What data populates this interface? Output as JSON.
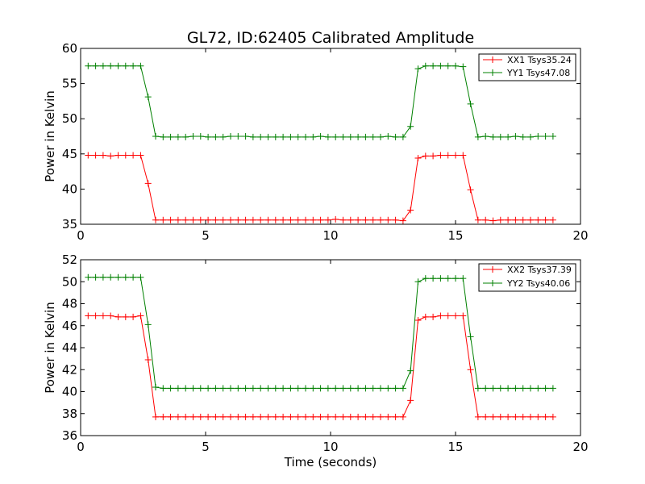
{
  "chart_data": [
    {
      "type": "line",
      "title": "GL72, ID:62405 Calibrated Amplitude",
      "xlabel": "",
      "ylabel": "Power in Kelvin",
      "xlim": [
        0,
        20
      ],
      "ylim": [
        35,
        60
      ],
      "x_ticks": [
        "0",
        "5",
        "10",
        "15",
        "20"
      ],
      "y_ticks": [
        "35",
        "40",
        "45",
        "50",
        "55",
        "60"
      ],
      "grid": false,
      "legend_position": "top-right",
      "x": [
        0.3,
        0.6,
        0.9,
        1.2,
        1.5,
        1.8,
        2.1,
        2.4,
        2.7,
        3.0,
        3.3,
        3.6,
        3.9,
        4.2,
        4.5,
        4.8,
        5.1,
        5.4,
        5.7,
        6.0,
        6.3,
        6.6,
        6.9,
        7.2,
        7.5,
        7.8,
        8.1,
        8.4,
        8.7,
        9.0,
        9.3,
        9.6,
        9.9,
        10.2,
        10.5,
        10.8,
        11.1,
        11.4,
        11.7,
        12.0,
        12.3,
        12.6,
        12.9,
        13.2,
        13.5,
        13.8,
        14.1,
        14.4,
        14.7,
        15.0,
        15.3,
        15.6,
        15.9,
        16.2,
        16.5,
        16.8,
        17.1,
        17.4,
        17.7,
        18.0,
        18.3,
        18.6,
        18.9
      ],
      "series": [
        {
          "name": "XX1 Tsys35.24",
          "color": "#ff0000",
          "values": [
            44.8,
            44.8,
            44.8,
            44.7,
            44.8,
            44.8,
            44.8,
            44.8,
            40.8,
            35.6,
            35.6,
            35.6,
            35.6,
            35.6,
            35.6,
            35.6,
            35.6,
            35.6,
            35.6,
            35.6,
            35.6,
            35.6,
            35.6,
            35.6,
            35.6,
            35.6,
            35.6,
            35.6,
            35.6,
            35.6,
            35.6,
            35.6,
            35.6,
            35.7,
            35.6,
            35.6,
            35.6,
            35.6,
            35.6,
            35.6,
            35.6,
            35.6,
            35.5,
            37.0,
            44.4,
            44.7,
            44.7,
            44.8,
            44.8,
            44.8,
            44.8,
            39.9,
            35.6,
            35.6,
            35.5,
            35.6,
            35.6,
            35.6,
            35.6,
            35.6,
            35.6,
            35.6,
            35.6
          ]
        },
        {
          "name": "YY1 Tsys47.08",
          "color": "#008000",
          "values": [
            57.5,
            57.5,
            57.5,
            57.5,
            57.5,
            57.5,
            57.5,
            57.5,
            53.1,
            47.5,
            47.4,
            47.4,
            47.4,
            47.4,
            47.5,
            47.5,
            47.4,
            47.4,
            47.4,
            47.5,
            47.5,
            47.5,
            47.4,
            47.4,
            47.4,
            47.4,
            47.4,
            47.4,
            47.4,
            47.4,
            47.4,
            47.5,
            47.4,
            47.4,
            47.4,
            47.4,
            47.4,
            47.4,
            47.4,
            47.4,
            47.5,
            47.4,
            47.4,
            48.9,
            57.1,
            57.5,
            57.5,
            57.5,
            57.5,
            57.5,
            57.4,
            52.1,
            47.4,
            47.5,
            47.4,
            47.4,
            47.4,
            47.5,
            47.4,
            47.4,
            47.5,
            47.5,
            47.5
          ]
        }
      ]
    },
    {
      "type": "line",
      "title": "",
      "xlabel": "Time (seconds)",
      "ylabel": "Power in Kelvin",
      "xlim": [
        0,
        20
      ],
      "ylim": [
        36,
        52
      ],
      "x_ticks": [
        "0",
        "5",
        "10",
        "15",
        "20"
      ],
      "y_ticks": [
        "36",
        "38",
        "40",
        "42",
        "44",
        "46",
        "48",
        "50",
        "52"
      ],
      "grid": false,
      "legend_position": "top-right",
      "x": [
        0.3,
        0.6,
        0.9,
        1.2,
        1.5,
        1.8,
        2.1,
        2.4,
        2.7,
        3.0,
        3.3,
        3.6,
        3.9,
        4.2,
        4.5,
        4.8,
        5.1,
        5.4,
        5.7,
        6.0,
        6.3,
        6.6,
        6.9,
        7.2,
        7.5,
        7.8,
        8.1,
        8.4,
        8.7,
        9.0,
        9.3,
        9.6,
        9.9,
        10.2,
        10.5,
        10.8,
        11.1,
        11.4,
        11.7,
        12.0,
        12.3,
        12.6,
        12.9,
        13.2,
        13.5,
        13.8,
        14.1,
        14.4,
        14.7,
        15.0,
        15.3,
        15.6,
        15.9,
        16.2,
        16.5,
        16.8,
        17.1,
        17.4,
        17.7,
        18.0,
        18.3,
        18.6,
        18.9
      ],
      "series": [
        {
          "name": "XX2 Tsys37.39",
          "color": "#ff0000",
          "values": [
            46.9,
            46.9,
            46.9,
            46.9,
            46.8,
            46.8,
            46.8,
            46.9,
            42.9,
            37.7,
            37.7,
            37.7,
            37.7,
            37.7,
            37.7,
            37.7,
            37.7,
            37.7,
            37.7,
            37.7,
            37.7,
            37.7,
            37.7,
            37.7,
            37.7,
            37.7,
            37.7,
            37.7,
            37.7,
            37.7,
            37.7,
            37.7,
            37.7,
            37.7,
            37.7,
            37.7,
            37.7,
            37.7,
            37.7,
            37.7,
            37.7,
            37.7,
            37.7,
            39.2,
            46.5,
            46.8,
            46.8,
            46.9,
            46.9,
            46.9,
            46.9,
            42.0,
            37.7,
            37.7,
            37.7,
            37.7,
            37.7,
            37.7,
            37.7,
            37.7,
            37.7,
            37.7,
            37.7
          ]
        },
        {
          "name": "YY2 Tsys40.06",
          "color": "#008000",
          "values": [
            50.4,
            50.4,
            50.4,
            50.4,
            50.4,
            50.4,
            50.4,
            50.4,
            46.1,
            40.4,
            40.3,
            40.3,
            40.3,
            40.3,
            40.3,
            40.3,
            40.3,
            40.3,
            40.3,
            40.3,
            40.3,
            40.3,
            40.3,
            40.3,
            40.3,
            40.3,
            40.3,
            40.3,
            40.3,
            40.3,
            40.3,
            40.3,
            40.3,
            40.3,
            40.3,
            40.3,
            40.3,
            40.3,
            40.3,
            40.3,
            40.3,
            40.3,
            40.3,
            41.9,
            50.0,
            50.3,
            50.3,
            50.3,
            50.3,
            50.3,
            50.3,
            45.0,
            40.3,
            40.3,
            40.3,
            40.3,
            40.3,
            40.3,
            40.3,
            40.3,
            40.3,
            40.3,
            40.3
          ]
        }
      ]
    }
  ]
}
